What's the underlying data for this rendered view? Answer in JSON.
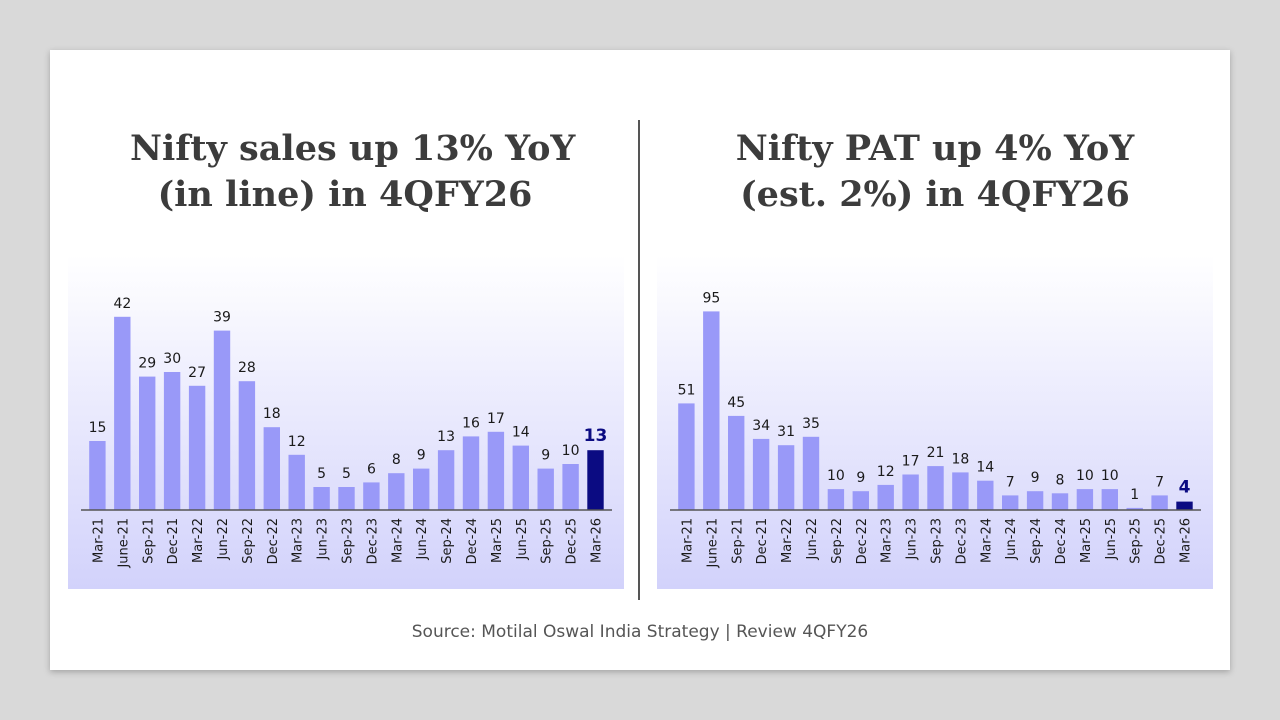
{
  "left_title": {
    "line1": "Nifty sales up 13% YoY",
    "line2": "(in line) in 4QFY26"
  },
  "right_title": {
    "line1": "Nifty PAT up 4% YoY",
    "line2": "(est. 2%) in 4QFY26"
  },
  "source": "Source: Motilal Oswal India Strategy | Review 4QFY26",
  "colors": {
    "bar": "#9999f8",
    "highlight": "#0b0b82",
    "label": "#1a1a1a",
    "axis": "#555555"
  },
  "chart_data": [
    {
      "type": "bar",
      "title": "Nifty sales up 13% YoY (in line) in 4QFY26",
      "categories": [
        "Mar-21",
        "June-21",
        "Sep-21",
        "Dec-21",
        "Mar-22",
        "Jun-22",
        "Sep-22",
        "Dec-22",
        "Mar-23",
        "Jun-23",
        "Sep-23",
        "Dec-23",
        "Mar-24",
        "Jun-24",
        "Sep-24",
        "Dec-24",
        "Mar-25",
        "Jun-25",
        "Sep-25",
        "Dec-25",
        "Mar-26"
      ],
      "values": [
        15,
        42,
        29,
        30,
        27,
        39,
        28,
        18,
        12,
        5,
        5,
        6,
        8,
        9,
        13,
        16,
        17,
        14,
        9,
        10,
        13
      ],
      "highlight_index": 20,
      "ylim": [
        0,
        50
      ],
      "xlabel": "",
      "ylabel": ""
    },
    {
      "type": "bar",
      "title": "Nifty PAT up 4% YoY (est. 2%) in 4QFY26",
      "categories": [
        "Mar-21",
        "June-21",
        "Sep-21",
        "Dec-21",
        "Mar-22",
        "Jun-22",
        "Sep-22",
        "Dec-22",
        "Mar-23",
        "Jun-23",
        "Sep-23",
        "Dec-23",
        "Mar-24",
        "Jun-24",
        "Sep-24",
        "Dec-24",
        "Mar-25",
        "Jun-25",
        "Sep-25",
        "Dec-25",
        "Mar-26"
      ],
      "values": [
        51,
        95,
        45,
        34,
        31,
        35,
        10,
        9,
        12,
        17,
        21,
        18,
        14,
        7,
        9,
        8,
        10,
        10,
        1,
        7,
        4
      ],
      "highlight_index": 20,
      "ylim": [
        0,
        110
      ],
      "xlabel": "",
      "ylabel": ""
    }
  ]
}
